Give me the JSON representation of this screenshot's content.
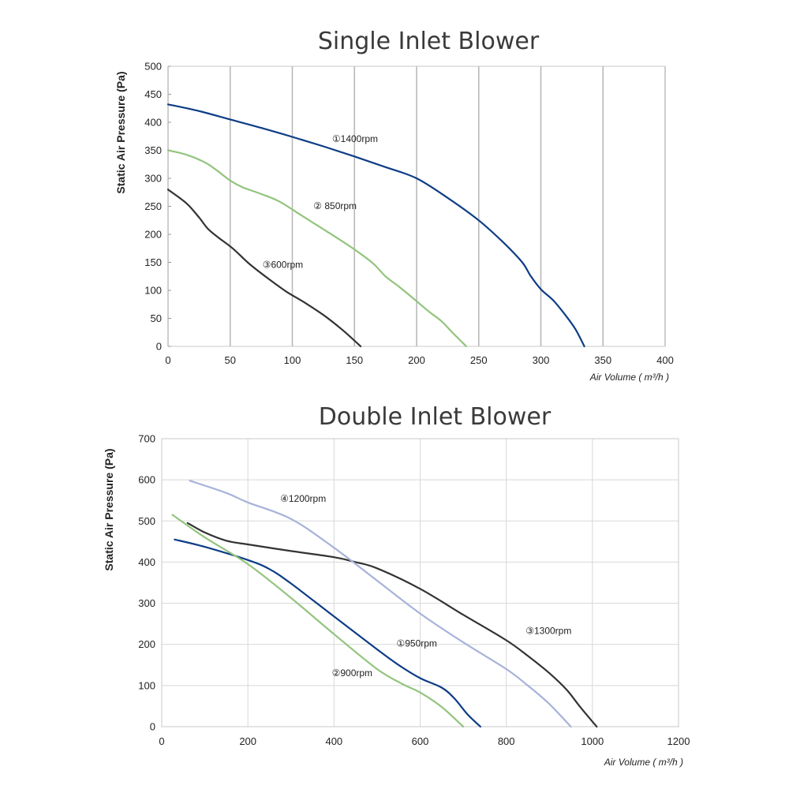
{
  "chart_data": [
    {
      "type": "line",
      "title": "Single Inlet Blower",
      "xlabel": "Air Volume ( m³/h )",
      "ylabel": "Static Air Pressure  (Pa)",
      "xlim": [
        0,
        400
      ],
      "ylim": [
        0,
        500
      ],
      "xticks": [
        "0",
        "50",
        "100",
        "150",
        "200",
        "250",
        "300",
        "350",
        "400"
      ],
      "yticks": [
        "0",
        "50",
        "100",
        "150",
        "200",
        "250",
        "300",
        "350",
        "400",
        "450",
        "500"
      ],
      "grid": "vertical",
      "series": [
        {
          "name": "①1400rpm",
          "color": "#0d3d86",
          "x": [
            0,
            25,
            50,
            75,
            100,
            125,
            150,
            175,
            200,
            225,
            250,
            270,
            285,
            292,
            300,
            310,
            320,
            328,
            335
          ],
          "y": [
            432,
            420,
            405,
            390,
            374,
            357,
            339,
            320,
            300,
            265,
            225,
            185,
            150,
            125,
            102,
            82,
            55,
            30,
            0
          ]
        },
        {
          "name": "② 850rpm",
          "color": "#93c47d",
          "x": [
            0,
            15,
            30,
            40,
            50,
            60,
            75,
            90,
            110,
            130,
            150,
            165,
            175,
            185,
            195,
            210,
            220,
            230,
            240
          ],
          "y": [
            350,
            342,
            328,
            313,
            296,
            284,
            272,
            258,
            230,
            202,
            173,
            148,
            125,
            108,
            90,
            62,
            45,
            22,
            0
          ]
        },
        {
          "name": "③600rpm",
          "color": "#333333",
          "x": [
            0,
            15,
            25,
            32,
            40,
            52,
            65,
            80,
            95,
            110,
            125,
            140,
            155
          ],
          "y": [
            280,
            255,
            230,
            210,
            195,
            175,
            148,
            122,
            98,
            78,
            56,
            30,
            0
          ]
        }
      ],
      "annotations": [
        {
          "text": "①1400rpm",
          "x": 132,
          "y": 365
        },
        {
          "text": "② 850rpm",
          "x": 117,
          "y": 245
        },
        {
          "text": "③600rpm",
          "x": 76,
          "y": 140
        }
      ]
    },
    {
      "type": "line",
      "title": "Double Inlet Blower",
      "xlabel": "Air Volume ( m³/h )",
      "ylabel": "Static Air Pressure  (Pa)",
      "xlim": [
        0,
        1200
      ],
      "ylim": [
        0,
        700
      ],
      "xticks": [
        "0",
        "200",
        "400",
        "600",
        "800",
        "1000",
        "1200"
      ],
      "yticks": [
        "0",
        "100",
        "200",
        "300",
        "400",
        "500",
        "600",
        "700"
      ],
      "grid": "both",
      "series": [
        {
          "name": "①950rpm",
          "color": "#0d3d86",
          "x": [
            30,
            100,
            200,
            250,
            300,
            400,
            500,
            550,
            600,
            650,
            680,
            710,
            740
          ],
          "y": [
            455,
            437,
            405,
            383,
            348,
            268,
            188,
            150,
            118,
            95,
            68,
            30,
            0
          ]
        },
        {
          "name": "②900rpm",
          "color": "#93c47d",
          "x": [
            25,
            100,
            200,
            300,
            400,
            500,
            560,
            600,
            650,
            700
          ],
          "y": [
            515,
            460,
            395,
            313,
            225,
            140,
            103,
            83,
            48,
            0
          ]
        },
        {
          "name": "③1300rpm",
          "color": "#333333",
          "x": [
            60,
            100,
            150,
            200,
            300,
            400,
            450,
            500,
            600,
            700,
            800,
            850,
            900,
            940,
            970,
            1010
          ],
          "y": [
            495,
            472,
            452,
            443,
            427,
            412,
            400,
            385,
            335,
            272,
            210,
            172,
            130,
            90,
            50,
            0
          ]
        },
        {
          "name": "④1200rpm",
          "color": "#a7b3d8",
          "x": [
            65,
            150,
            200,
            300,
            400,
            500,
            600,
            700,
            800,
            850,
            900,
            950
          ],
          "y": [
            598,
            568,
            545,
            505,
            435,
            355,
            275,
            205,
            140,
            100,
            55,
            0
          ]
        }
      ],
      "annotations": [
        {
          "text": "④1200rpm",
          "x": 275,
          "y": 547
        },
        {
          "text": "①950rpm",
          "x": 545,
          "y": 195
        },
        {
          "text": "②900rpm",
          "x": 395,
          "y": 123
        },
        {
          "text": "③1300rpm",
          "x": 845,
          "y": 225
        }
      ]
    }
  ]
}
